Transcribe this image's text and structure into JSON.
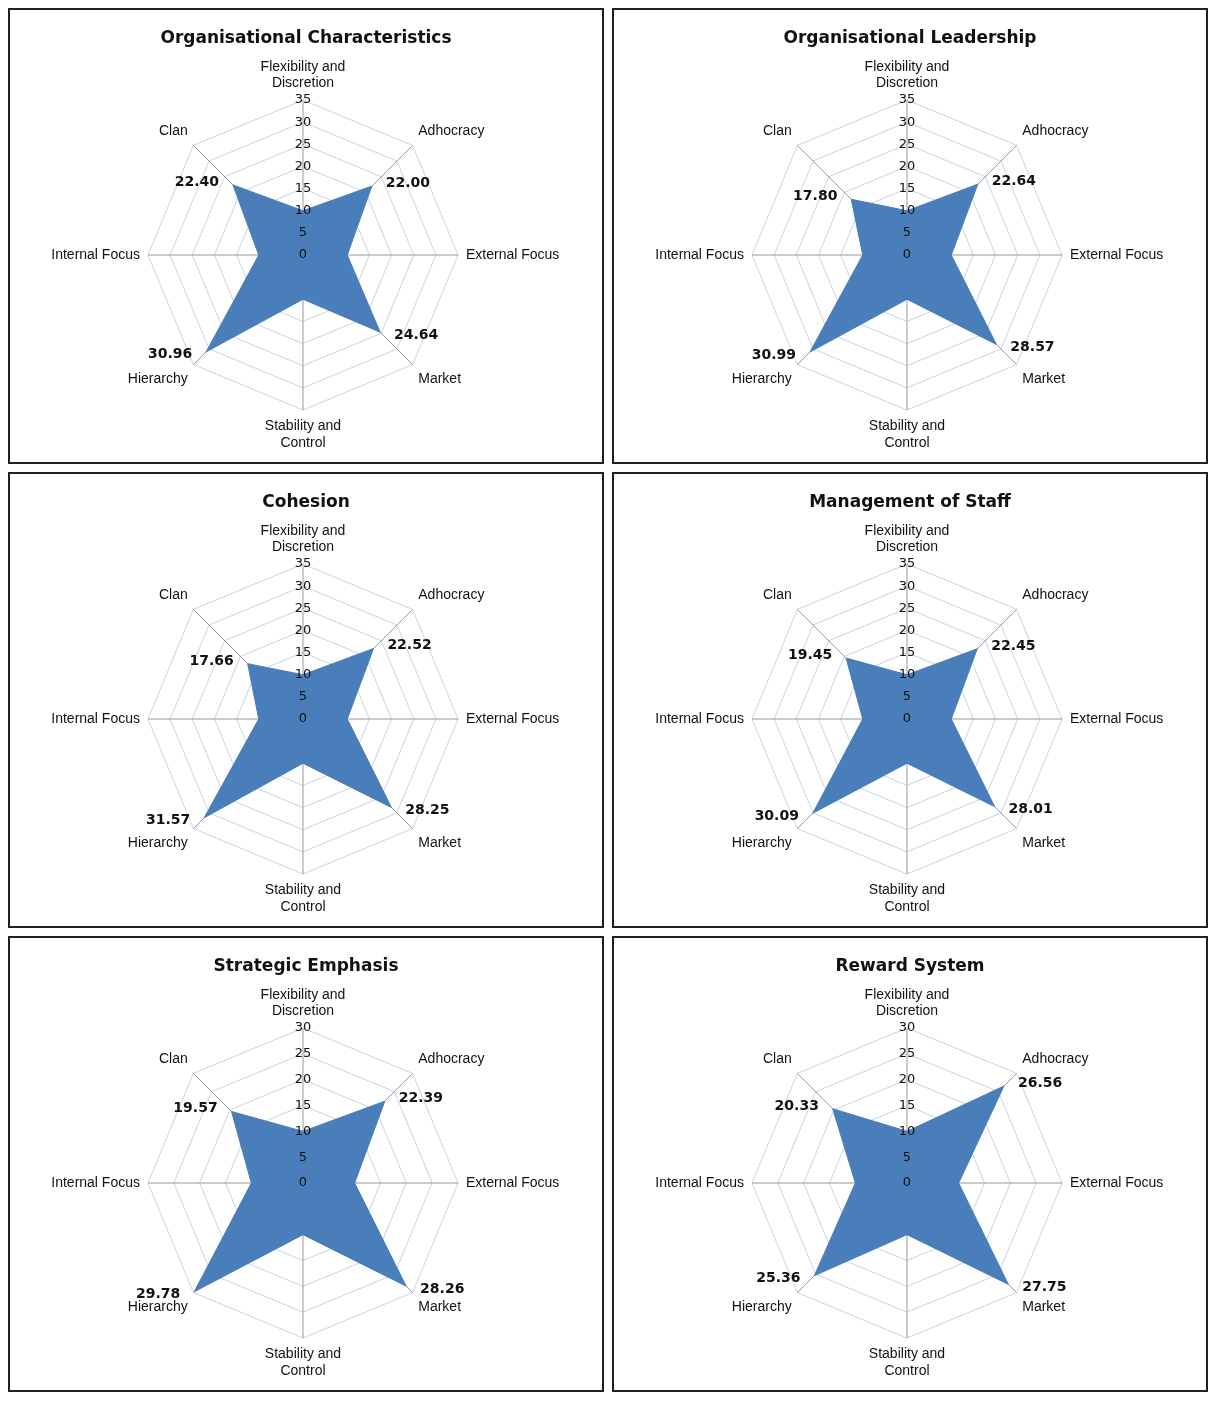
{
  "chart_data": [
    {
      "type": "radar",
      "title": "Organisational Characteristics",
      "categories": [
        "Flexibility and Discretion",
        "Adhocracy",
        "External Focus",
        "Market",
        "Stability and Control",
        "Hierarchy",
        "Internal Focus",
        "Clan"
      ],
      "series": [
        {
          "color": "#4a7ebb",
          "values": [
            10,
            22.0,
            10,
            24.64,
            10,
            30.96,
            10,
            22.4
          ],
          "value_labels": [
            null,
            "22.00",
            null,
            "24.64",
            null,
            "30.96",
            null,
            "22.40"
          ]
        }
      ],
      "ylim": [
        0,
        35
      ],
      "yticks": [
        0,
        5,
        10,
        15,
        20,
        25,
        30,
        35
      ],
      "grid": true
    },
    {
      "type": "radar",
      "title": "Organisational Leadership",
      "categories": [
        "Flexibility and Discretion",
        "Adhocracy",
        "External Focus",
        "Market",
        "Stability and Control",
        "Hierarchy",
        "Internal Focus",
        "Clan"
      ],
      "series": [
        {
          "color": "#4a7ebb",
          "values": [
            10,
            22.64,
            10,
            28.57,
            10,
            30.99,
            10,
            17.8
          ],
          "value_labels": [
            null,
            "22.64",
            null,
            "28.57",
            null,
            "30.99",
            null,
            "17.80"
          ]
        }
      ],
      "ylim": [
        0,
        35
      ],
      "yticks": [
        0,
        5,
        10,
        15,
        20,
        25,
        30,
        35
      ],
      "grid": true
    },
    {
      "type": "radar",
      "title": "Cohesion",
      "categories": [
        "Flexibility and Discretion",
        "Adhocracy",
        "External Focus",
        "Market",
        "Stability and Control",
        "Hierarchy",
        "Internal Focus",
        "Clan"
      ],
      "series": [
        {
          "color": "#4a7ebb",
          "values": [
            10,
            22.52,
            10,
            28.25,
            10,
            31.57,
            10,
            17.66
          ],
          "value_labels": [
            null,
            "22.52",
            null,
            "28.25",
            null,
            "31.57",
            null,
            "17.66"
          ]
        }
      ],
      "ylim": [
        0,
        35
      ],
      "yticks": [
        0,
        5,
        10,
        15,
        20,
        25,
        30,
        35
      ],
      "grid": true
    },
    {
      "type": "radar",
      "title": "Management of Staff",
      "categories": [
        "Flexibility and Discretion",
        "Adhocracy",
        "External Focus",
        "Market",
        "Stability and Control",
        "Hierarchy",
        "Internal Focus",
        "Clan"
      ],
      "series": [
        {
          "color": "#4a7ebb",
          "values": [
            10,
            22.45,
            10,
            28.01,
            10,
            30.09,
            10,
            19.45
          ],
          "value_labels": [
            null,
            "22.45",
            null,
            "28.01",
            null,
            "30.09",
            null,
            "19.45"
          ]
        }
      ],
      "ylim": [
        0,
        35
      ],
      "yticks": [
        0,
        5,
        10,
        15,
        20,
        25,
        30,
        35
      ],
      "grid": true
    },
    {
      "type": "radar",
      "title": "Strategic Emphasis",
      "categories": [
        "Flexibility and Discretion",
        "Adhocracy",
        "External Focus",
        "Market",
        "Stability and Control",
        "Hierarchy",
        "Internal Focus",
        "Clan"
      ],
      "series": [
        {
          "color": "#4a7ebb",
          "values": [
            10,
            22.39,
            10,
            28.26,
            10,
            29.78,
            10,
            19.57
          ],
          "value_labels": [
            null,
            "22.39",
            null,
            "28.26",
            null,
            "29.78",
            null,
            "19.57"
          ]
        }
      ],
      "ylim": [
        0,
        30
      ],
      "yticks": [
        0,
        5,
        10,
        15,
        20,
        25,
        30
      ],
      "grid": true
    },
    {
      "type": "radar",
      "title": "Reward System",
      "categories": [
        "Flexibility and Discretion",
        "Adhocracy",
        "External Focus",
        "Market",
        "Stability and Control",
        "Hierarchy",
        "Internal Focus",
        "Clan"
      ],
      "series": [
        {
          "color": "#4a7ebb",
          "values": [
            10,
            26.56,
            10,
            27.75,
            10,
            25.36,
            10,
            20.33
          ],
          "value_labels": [
            null,
            "26.56",
            null,
            "27.75",
            null,
            "25.36",
            null,
            "20.33"
          ]
        }
      ],
      "ylim": [
        0,
        30
      ],
      "yticks": [
        0,
        5,
        10,
        15,
        20,
        25,
        30
      ],
      "grid": true
    }
  ]
}
